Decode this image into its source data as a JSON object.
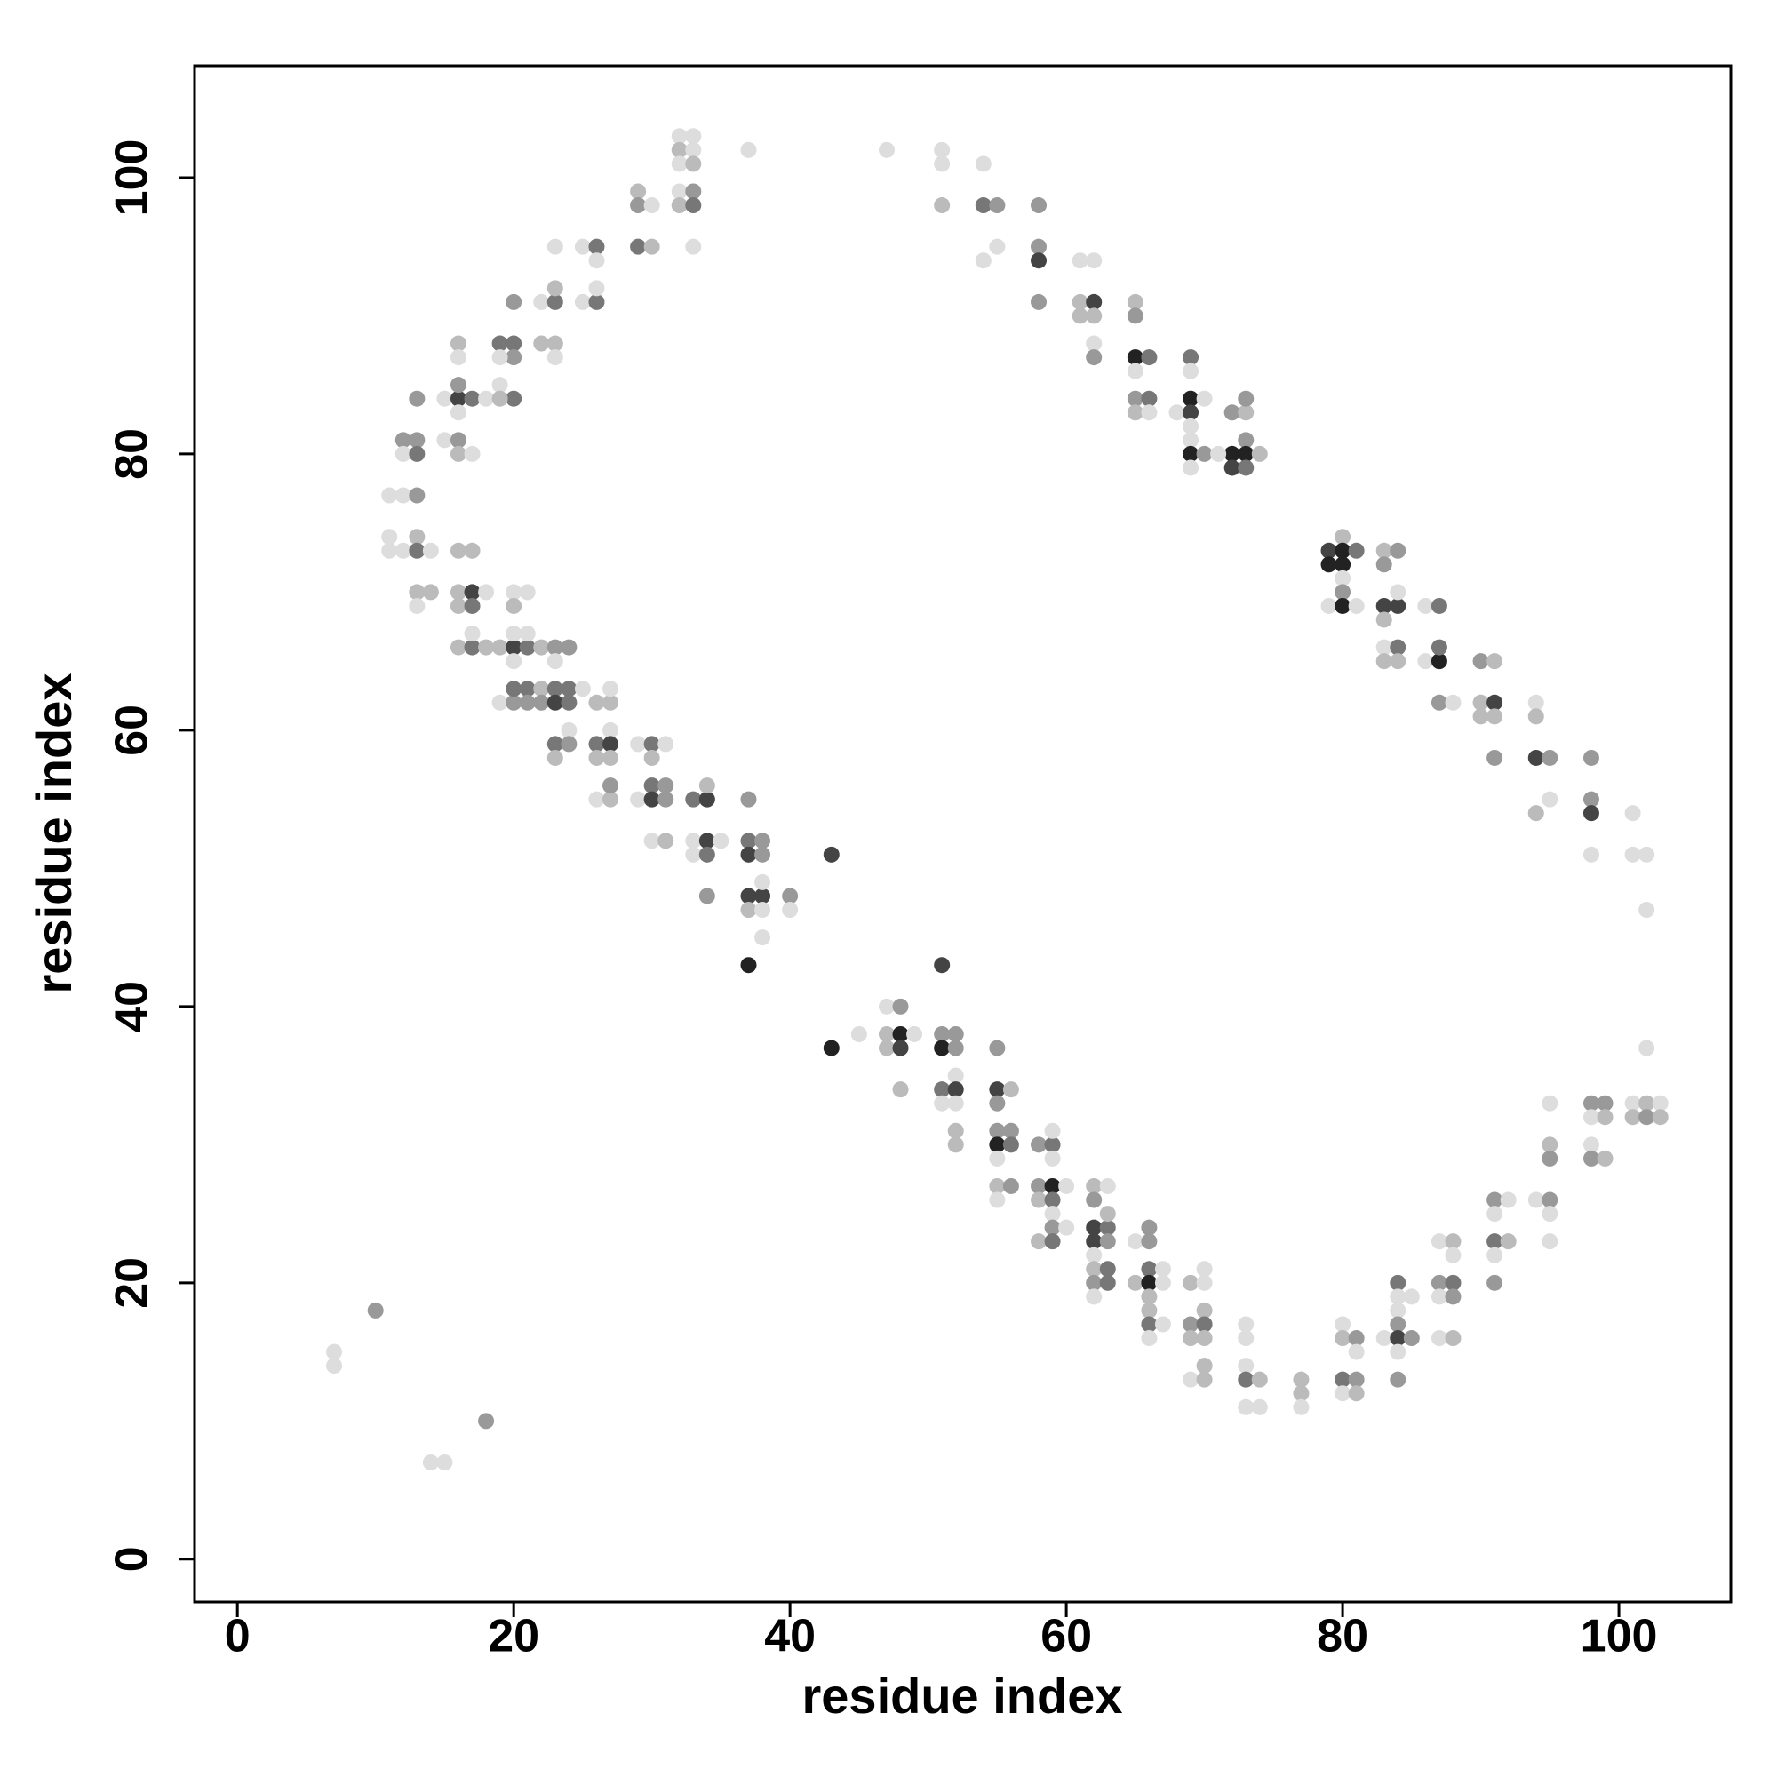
{
  "chart_data": {
    "type": "scatter",
    "xlabel": "residue index",
    "ylabel": "residue index",
    "xlim": [
      -3.1,
      108.1
    ],
    "ylim": [
      -3.1,
      108.1
    ],
    "xticks": [
      0,
      20,
      40,
      60,
      80,
      100
    ],
    "yticks": [
      0,
      20,
      40,
      60,
      80,
      100
    ],
    "x": [
      7,
      7,
      10,
      14,
      15,
      18,
      32,
      33,
      32,
      33,
      32,
      33,
      32,
      33,
      32,
      33,
      33,
      37,
      29,
      29,
      30,
      29,
      30,
      23,
      25,
      26,
      26,
      25,
      26,
      26,
      22,
      23,
      23,
      20,
      16,
      16,
      19,
      20,
      20,
      19,
      22,
      23,
      23,
      13,
      15,
      16,
      17,
      16,
      16,
      18,
      19,
      20,
      19,
      12,
      13,
      12,
      13,
      15,
      16,
      16,
      17,
      11,
      12,
      13,
      11,
      11,
      12,
      13,
      13,
      14,
      16,
      17,
      13,
      14,
      13,
      16,
      17,
      16,
      17,
      18,
      16,
      17,
      17,
      18,
      19,
      20,
      21,
      20,
      21,
      20,
      22,
      23,
      24,
      23,
      20,
      21,
      20,
      19,
      20,
      20,
      21,
      21,
      22,
      22,
      23,
      24,
      23,
      24,
      25,
      24,
      26,
      27,
      27,
      27,
      23,
      24,
      23,
      26,
      27,
      26,
      27,
      29,
      30,
      31,
      30,
      26,
      27,
      27,
      29,
      30,
      31,
      30,
      31,
      33,
      34,
      34,
      30,
      31,
      33,
      34,
      33,
      34,
      35,
      37,
      37,
      38,
      37,
      38,
      43,
      34,
      37,
      38,
      37,
      38,
      38,
      38,
      40,
      40,
      37,
      43,
      45,
      47,
      48,
      47,
      48,
      47,
      48,
      49,
      48,
      51,
      51,
      52,
      51,
      52,
      52,
      51,
      52,
      51,
      52,
      52,
      52,
      55,
      55,
      56,
      55,
      55,
      56,
      55,
      56,
      55,
      55,
      56,
      55,
      58,
      59,
      59,
      59,
      58,
      59,
      60,
      58,
      59,
      59,
      59,
      60,
      58,
      59,
      62,
      63,
      62,
      62,
      63,
      63,
      62,
      63,
      62,
      62,
      63,
      62,
      63,
      62,
      65,
      66,
      66,
      65,
      66,
      67,
      66,
      67,
      66,
      66,
      66,
      67,
      66,
      69,
      70,
      70,
      70,
      69,
      70,
      69,
      70,
      70,
      69,
      70,
      73,
      73,
      73,
      73,
      74,
      73,
      74,
      77,
      77,
      77,
      80,
      80,
      81,
      80,
      81,
      80,
      81,
      81,
      83,
      84,
      84,
      84,
      84,
      84,
      85,
      84,
      85,
      84,
      87,
      88,
      88,
      87,
      88,
      87,
      88,
      87,
      88,
      91,
      92,
      91,
      91,
      92,
      91,
      91,
      94,
      95,
      95,
      95,
      95,
      95,
      95,
      98,
      99,
      98,
      99,
      98,
      98,
      99,
      101,
      102,
      103,
      101,
      102,
      103,
      102,
      47,
      51,
      51,
      51,
      54,
      54,
      55,
      54,
      55,
      58,
      58,
      58,
      58,
      61,
      62,
      61,
      62,
      61,
      62,
      62,
      62,
      65,
      65,
      65,
      66,
      65,
      65,
      66,
      65,
      66,
      69,
      69,
      69,
      70,
      68,
      69,
      69,
      69,
      69,
      70,
      69,
      72,
      73,
      73,
      73,
      72,
      73,
      71,
      74,
      72,
      73,
      79,
      80,
      80,
      81,
      79,
      80,
      80,
      80,
      79,
      80,
      81,
      83,
      84,
      83,
      83,
      84,
      83,
      84,
      86,
      87,
      83,
      84,
      83,
      84,
      86,
      87,
      87,
      87,
      88,
      90,
      91,
      90,
      91,
      90,
      91,
      91,
      94,
      94,
      94,
      95,
      94,
      95,
      98,
      98,
      98,
      98,
      101,
      101,
      102,
      102
    ],
    "y": [
      15,
      14,
      18,
      7,
      7,
      10,
      103,
      103,
      102,
      102,
      101,
      101,
      99,
      99,
      98,
      98,
      95,
      102,
      99,
      98,
      98,
      95,
      95,
      95,
      95,
      95,
      94,
      91,
      91,
      92,
      91,
      91,
      92,
      91,
      88,
      87,
      88,
      88,
      87,
      87,
      88,
      88,
      87,
      84,
      84,
      84,
      84,
      85,
      83,
      84,
      85,
      84,
      84,
      81,
      81,
      80,
      80,
      81,
      81,
      80,
      80,
      77,
      77,
      77,
      74,
      73,
      73,
      74,
      73,
      73,
      73,
      73,
      70,
      70,
      69,
      70,
      70,
      69,
      69,
      70,
      66,
      66,
      67,
      66,
      66,
      66,
      66,
      67,
      67,
      65,
      66,
      66,
      66,
      65,
      70,
      70,
      69,
      62,
      62,
      63,
      63,
      62,
      63,
      62,
      63,
      63,
      62,
      62,
      63,
      60,
      62,
      62,
      63,
      60,
      59,
      59,
      58,
      59,
      59,
      58,
      58,
      59,
      59,
      59,
      58,
      55,
      55,
      56,
      55,
      56,
      56,
      55,
      55,
      55,
      55,
      56,
      52,
      52,
      52,
      52,
      51,
      51,
      52,
      55,
      52,
      52,
      51,
      51,
      51,
      48,
      48,
      48,
      47,
      47,
      49,
      45,
      48,
      47,
      43,
      37,
      38,
      40,
      40,
      38,
      38,
      37,
      37,
      38,
      34,
      43,
      38,
      38,
      37,
      37,
      35,
      34,
      34,
      33,
      33,
      31,
      30,
      37,
      34,
      34,
      33,
      31,
      31,
      30,
      30,
      29,
      27,
      27,
      26,
      30,
      30,
      31,
      29,
      27,
      27,
      27,
      26,
      26,
      25,
      24,
      24,
      23,
      23,
      27,
      27,
      26,
      24,
      24,
      25,
      23,
      23,
      22,
      21,
      21,
      20,
      20,
      19,
      23,
      24,
      23,
      20,
      21,
      21,
      20,
      20,
      19,
      18,
      17,
      17,
      16,
      20,
      20,
      21,
      18,
      17,
      17,
      16,
      16,
      14,
      13,
      13,
      17,
      16,
      14,
      13,
      13,
      11,
      11,
      13,
      12,
      11,
      17,
      16,
      16,
      13,
      13,
      12,
      12,
      15,
      16,
      20,
      19,
      18,
      17,
      16,
      16,
      15,
      19,
      13,
      23,
      23,
      22,
      20,
      20,
      19,
      19,
      16,
      16,
      26,
      26,
      25,
      23,
      23,
      22,
      20,
      26,
      26,
      25,
      23,
      30,
      29,
      33,
      33,
      33,
      32,
      32,
      30,
      29,
      29,
      33,
      33,
      33,
      32,
      32,
      32,
      37,
      102,
      102,
      101,
      98,
      101,
      98,
      98,
      94,
      95,
      98,
      95,
      94,
      91,
      94,
      94,
      91,
      91,
      90,
      90,
      88,
      87,
      91,
      90,
      87,
      87,
      86,
      84,
      84,
      83,
      83,
      87,
      86,
      84,
      84,
      83,
      83,
      82,
      81,
      80,
      80,
      79,
      83,
      83,
      84,
      81,
      80,
      80,
      80,
      80,
      79,
      79,
      73,
      74,
      73,
      73,
      72,
      72,
      71,
      70,
      69,
      69,
      69,
      73,
      73,
      72,
      69,
      69,
      68,
      70,
      69,
      69,
      66,
      66,
      65,
      65,
      65,
      65,
      66,
      62,
      62,
      65,
      65,
      62,
      62,
      61,
      61,
      58,
      62,
      61,
      58,
      58,
      54,
      55,
      58,
      55,
      54,
      51,
      54,
      51,
      51,
      47
    ],
    "colors": [
      "#ddd",
      "#ddd",
      "#999",
      "#ddd",
      "#ddd",
      "#999",
      "#ddd",
      "#ddd",
      "#bbb",
      "#ddd",
      "#ddd",
      "#bbb",
      "#ddd",
      "#999",
      "#bbb",
      "#777",
      "#ddd",
      "#ddd",
      "#bbb",
      "#999",
      "#ddd",
      "#777",
      "#bbb",
      "#ddd",
      "#ddd",
      "#777",
      "#ddd",
      "#ddd",
      "#777",
      "#ddd",
      "#ddd",
      "#777",
      "#bbb",
      "#999",
      "#bbb",
      "#ddd",
      "#777",
      "#777",
      "#999",
      "#ddd",
      "#bbb",
      "#bbb",
      "#ddd",
      "#999",
      "#ddd",
      "#444",
      "#777",
      "#999",
      "#ddd",
      "#ddd",
      "#ddd",
      "#777",
      "#bbb",
      "#999",
      "#999",
      "#ddd",
      "#777",
      "#ddd",
      "#999",
      "#bbb",
      "#ddd",
      "#ddd",
      "#ddd",
      "#999",
      "#ddd",
      "#ddd",
      "#ddd",
      "#bbb",
      "#777",
      "#ddd",
      "#bbb",
      "#bbb",
      "#bbb",
      "#bbb",
      "#ddd",
      "#bbb",
      "#444",
      "#bbb",
      "#777",
      "#ddd",
      "#bbb",
      "#777",
      "#ddd",
      "#bbb",
      "#bbb",
      "#444",
      "#777",
      "#ddd",
      "#ddd",
      "#ddd",
      "#bbb",
      "#999",
      "#999",
      "#ddd",
      "#ddd",
      "#ddd",
      "#bbb",
      "#ddd",
      "#999",
      "#777",
      "#777",
      "#999",
      "#bbb",
      "#999",
      "#777",
      "#777",
      "#444",
      "#777",
      "#ddd",
      "#ddd",
      "#bbb",
      "#bbb",
      "#ddd",
      "#ddd",
      "#777",
      "#999",
      "#bbb",
      "#777",
      "#444",
      "#bbb",
      "#bbb",
      "#ddd",
      "#777",
      "#ddd",
      "#bbb",
      "#ddd",
      "#bbb",
      "#999",
      "#ddd",
      "#777",
      "#999",
      "#444",
      "#999",
      "#777",
      "#444",
      "#bbb",
      "#ddd",
      "#bbb",
      "#ddd",
      "#444",
      "#ddd",
      "#777",
      "#ddd",
      "#999",
      "#777",
      "#999",
      "#444",
      "#999",
      "#444",
      "#999",
      "#444",
      "#444",
      "#bbb",
      "#ddd",
      "#ddd",
      "#ddd",
      "#999",
      "#ddd",
      "#222",
      "#222",
      "#ddd",
      "#ddd",
      "#999",
      "#bbb",
      "#222",
      "#bbb",
      "#444",
      "#ddd",
      "#bbb",
      "#444",
      "#999",
      "#999",
      "#222",
      "#999",
      "#ddd",
      "#777",
      "#444",
      "#ddd",
      "#ddd",
      "#bbb",
      "#bbb",
      "#999",
      "#444",
      "#bbb",
      "#999",
      "#999",
      "#999",
      "#222",
      "#777",
      "#ddd",
      "#bbb",
      "#999",
      "#ddd",
      "#999",
      "#777",
      "#ddd",
      "#ddd",
      "#999",
      "#222",
      "#ddd",
      "#bbb",
      "#777",
      "#ddd",
      "#999",
      "#ddd",
      "#bbb",
      "#777",
      "#bbb",
      "#ddd",
      "#999",
      "#444",
      "#777",
      "#bbb",
      "#444",
      "#999",
      "#ddd",
      "#bbb",
      "#777",
      "#999",
      "#777",
      "#ddd",
      "#ddd",
      "#999",
      "#999",
      "#bbb",
      "#777",
      "#ddd",
      "#222",
      "#ddd",
      "#bbb",
      "#bbb",
      "#777",
      "#ddd",
      "#ddd",
      "#bbb",
      "#ddd",
      "#ddd",
      "#bbb",
      "#999",
      "#777",
      "#bbb",
      "#bbb",
      "#bbb",
      "#ddd",
      "#bbb",
      "#ddd",
      "#ddd",
      "#ddd",
      "#777",
      "#bbb",
      "#ddd",
      "#ddd",
      "#bbb",
      "#bbb",
      "#ddd",
      "#ddd",
      "#bbb",
      "#999",
      "#777",
      "#999",
      "#ddd",
      "#bbb",
      "#ddd",
      "#ddd",
      "#777",
      "#ddd",
      "#ddd",
      "#999",
      "#444",
      "#999",
      "#ddd",
      "#ddd",
      "#999",
      "#ddd",
      "#bbb",
      "#ddd",
      "#999",
      "#777",
      "#ddd",
      "#999",
      "#ddd",
      "#bbb",
      "#999",
      "#ddd",
      "#ddd",
      "#777",
      "#bbb",
      "#ddd",
      "#999",
      "#ddd",
      "#999",
      "#ddd",
      "#ddd",
      "#bbb",
      "#999",
      "#ddd",
      "#999",
      "#999",
      "#ddd",
      "#bbb",
      "#ddd",
      "#999",
      "#bbb",
      "#ddd",
      "#bbb",
      "#ddd",
      "#bbb",
      "#999",
      "#bbb",
      "#ddd",
      "#ddd",
      "#ddd",
      "#ddd",
      "#bbb",
      "#ddd",
      "#777",
      "#999",
      "#ddd",
      "#ddd",
      "#999",
      "#999",
      "#444",
      "#999",
      "#ddd",
      "#ddd",
      "#bbb",
      "#444",
      "#bbb",
      "#bbb",
      "#ddd",
      "#999",
      "#bbb",
      "#999",
      "#222",
      "#777",
      "#ddd",
      "#999",
      "#777",
      "#bbb",
      "#ddd",
      "#777",
      "#ddd",
      "#222",
      "#ddd",
      "#ddd",
      "#444",
      "#ddd",
      "#ddd",
      "#222",
      "#999",
      "#ddd",
      "#999",
      "#bbb",
      "#999",
      "#999",
      "#222",
      "#222",
      "#ddd",
      "#bbb",
      "#444",
      "#777",
      "#444",
      "#bbb",
      "#222",
      "#777",
      "#222",
      "#222",
      "#ddd",
      "#999",
      "#ddd",
      "#222",
      "#ddd",
      "#bbb",
      "#999",
      "#999",
      "#444",
      "#444",
      "#bbb",
      "#ddd",
      "#ddd",
      "#777",
      "#ddd",
      "#777",
      "#bbb",
      "#bbb",
      "#ddd",
      "#222",
      "#777",
      "#999",
      "#ddd",
      "#999",
      "#bbb",
      "#bbb",
      "#444",
      "#bbb",
      "#bbb",
      "#999",
      "#ddd",
      "#bbb",
      "#444",
      "#999",
      "#bbb",
      "#ddd",
      "#999",
      "#999",
      "#444",
      "#ddd",
      "#ddd",
      "#ddd",
      "#ddd",
      "#ddd"
    ]
  }
}
